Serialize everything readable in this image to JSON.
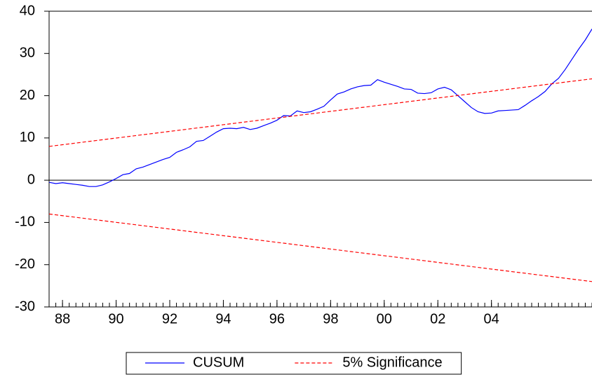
{
  "chart_data": {
    "type": "line",
    "categories": [
      null,
      null,
      "88",
      null,
      null,
      null,
      null,
      null,
      null,
      null,
      "90",
      null,
      null,
      null,
      null,
      null,
      null,
      null,
      "92",
      null,
      null,
      null,
      null,
      null,
      null,
      null,
      "94",
      null,
      null,
      null,
      null,
      null,
      null,
      null,
      "96",
      null,
      null,
      null,
      null,
      null,
      null,
      null,
      "98",
      null,
      null,
      null,
      null,
      null,
      null,
      null,
      "00",
      null,
      null,
      null,
      null,
      null,
      null,
      null,
      "02",
      null,
      null,
      null,
      null,
      null,
      null,
      null,
      "04",
      null,
      null,
      null,
      null,
      null,
      null,
      null,
      null,
      null,
      null,
      null,
      null,
      null,
      null,
      null
    ],
    "series": [
      {
        "name": "CUSUM",
        "color": "#0000ff",
        "style": "solid",
        "values": [
          -0.5,
          -0.8,
          -0.6,
          -0.8,
          -1.0,
          -1.2,
          -1.5,
          -1.5,
          -1.1,
          -0.4,
          0.4,
          1.3,
          1.6,
          2.7,
          3.1,
          3.7,
          4.3,
          4.9,
          5.4,
          6.6,
          7.2,
          7.9,
          9.2,
          9.4,
          10.4,
          11.4,
          12.2,
          12.3,
          12.2,
          12.5,
          12.0,
          12.3,
          12.9,
          13.5,
          14.2,
          15.3,
          15.2,
          16.4,
          16.0,
          16.2,
          16.8,
          17.5,
          19.0,
          20.4,
          20.9,
          21.6,
          22.1,
          22.4,
          22.5,
          23.8,
          23.2,
          22.7,
          22.2,
          21.6,
          21.5,
          20.6,
          20.5,
          20.7,
          21.6,
          22.0,
          21.4,
          20.0,
          18.6,
          17.2,
          16.2,
          15.8,
          15.9,
          16.4,
          16.5,
          16.6,
          16.7,
          17.7,
          18.8,
          19.8,
          21.0,
          22.8,
          24.1,
          26.2,
          28.6,
          31.0,
          33.2,
          35.8
        ]
      },
      {
        "name": "5% Significance",
        "color": "#ff0000",
        "style": "dashed",
        "values": [
          8.0,
          8.2,
          8.4,
          8.59,
          8.79,
          8.99,
          9.19,
          9.38,
          9.58,
          9.78,
          9.98,
          10.17,
          10.37,
          10.57,
          10.77,
          10.96,
          11.16,
          11.36,
          11.56,
          11.75,
          11.95,
          12.15,
          12.35,
          12.54,
          12.74,
          12.94,
          13.14,
          13.33,
          13.53,
          13.73,
          13.93,
          14.12,
          14.32,
          14.52,
          14.72,
          14.91,
          15.11,
          15.31,
          15.51,
          15.7,
          15.9,
          16.1,
          16.3,
          16.49,
          16.69,
          16.89,
          17.09,
          17.28,
          17.48,
          17.68,
          17.88,
          18.07,
          18.27,
          18.47,
          18.67,
          18.86,
          19.06,
          19.26,
          19.46,
          19.65,
          19.85,
          20.05,
          20.25,
          20.44,
          20.64,
          20.84,
          21.04,
          21.23,
          21.43,
          21.63,
          21.83,
          22.02,
          22.22,
          22.42,
          22.62,
          22.81,
          23.01,
          23.21,
          23.41,
          23.6,
          23.8,
          24.0
        ]
      },
      {
        "color": "#ff0000",
        "style": "dashed",
        "values": [
          -8.0,
          -8.2,
          -8.4,
          -8.59,
          -8.79,
          -8.99,
          -9.19,
          -9.38,
          -9.58,
          -9.78,
          -9.98,
          -10.17,
          -10.37,
          -10.57,
          -10.77,
          -10.96,
          -11.16,
          -11.36,
          -11.56,
          -11.75,
          -11.95,
          -12.15,
          -12.35,
          -12.54,
          -12.74,
          -12.94,
          -13.14,
          -13.33,
          -13.53,
          -13.73,
          -13.93,
          -14.12,
          -14.32,
          -14.52,
          -14.72,
          -14.91,
          -15.11,
          -15.31,
          -15.51,
          -15.7,
          -15.9,
          -16.1,
          -16.3,
          -16.49,
          -16.69,
          -16.89,
          -17.09,
          -17.28,
          -17.48,
          -17.68,
          -17.88,
          -18.07,
          -18.27,
          -18.47,
          -18.67,
          -18.86,
          -19.06,
          -19.26,
          -19.46,
          -19.65,
          -19.85,
          -20.05,
          -20.25,
          -20.44,
          -20.64,
          -20.84,
          -21.04,
          -21.23,
          -21.43,
          -21.63,
          -21.83,
          -22.02,
          -22.22,
          -22.42,
          -22.62,
          -22.81,
          -23.01,
          -23.21,
          -23.41,
          -23.6,
          -23.8,
          -24.0
        ]
      }
    ],
    "ylim": [
      -30,
      40
    ],
    "yticks": [
      -30,
      -20,
      -10,
      0,
      10,
      20,
      30,
      40
    ],
    "zero_line": true,
    "grid": false,
    "legend": "bottom"
  }
}
